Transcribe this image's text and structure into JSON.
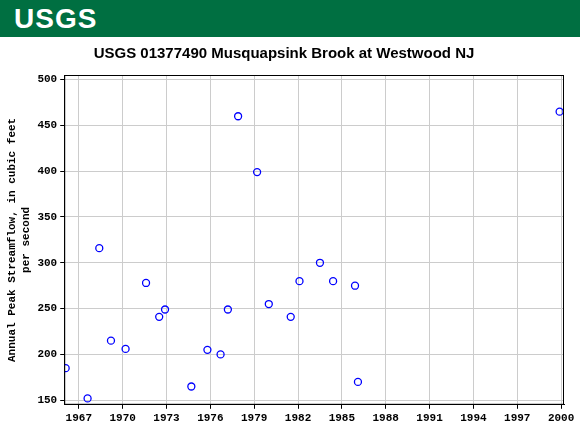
{
  "banner": "USGS",
  "chart_data": {
    "type": "scatter",
    "title": "USGS 01377490 Musquapsink Brook at Westwood NJ",
    "ylabel": [
      "Annual Peak Streamflow, in cubic feet",
      "per second"
    ],
    "x": [
      1966.1,
      1967.6,
      1968.4,
      1969.2,
      1970.2,
      1971.6,
      1972.5,
      1972.9,
      1974.7,
      1975.8,
      1976.7,
      1977.2,
      1977.9,
      1979.2,
      1980.0,
      1981.5,
      1982.1,
      1983.5,
      1984.4,
      1985.9,
      1986.1,
      1999.9
    ],
    "values": [
      185,
      152,
      316,
      215,
      206,
      278,
      241,
      249,
      165,
      205,
      200,
      249,
      460,
      399,
      255,
      241,
      280,
      300,
      280,
      275,
      170,
      465
    ],
    "color": "#0000ff",
    "marker": "open circle",
    "xlim": [
      1966,
      2000.2
    ],
    "xticks": [
      1967,
      1970,
      1973,
      1976,
      1979,
      1982,
      1985,
      1988,
      1991,
      1994,
      1997,
      2000
    ],
    "ylim": [
      145,
      505
    ],
    "yticks": [
      150,
      200,
      250,
      300,
      350,
      400,
      450,
      500
    ],
    "grid": true
  }
}
